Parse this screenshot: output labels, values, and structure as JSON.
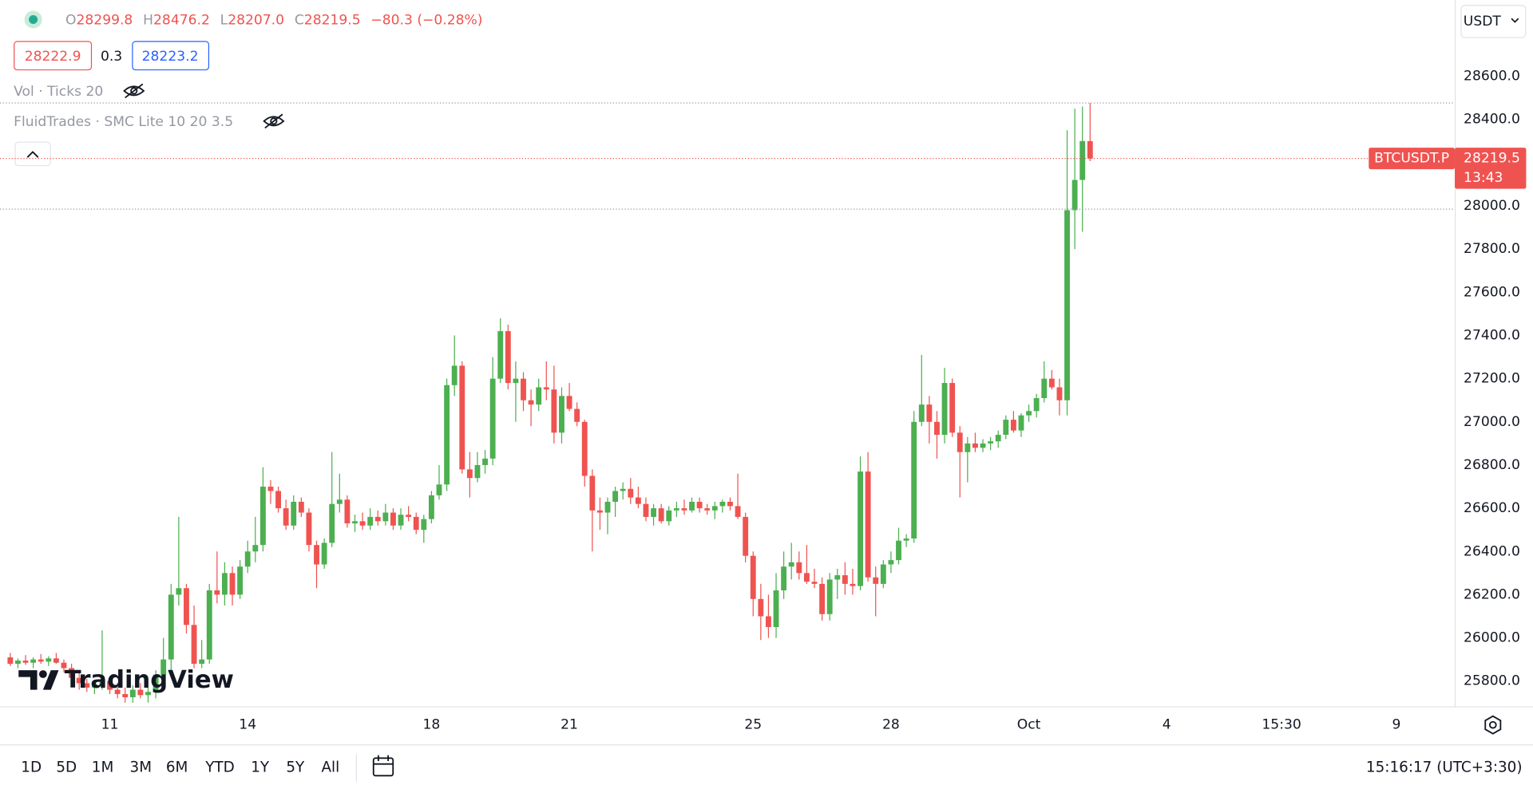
{
  "header": {
    "open_label": "O",
    "open": "28299.8",
    "high_label": "H",
    "high": "28476.2",
    "low_label": "L",
    "low": "28207.0",
    "close_label": "C",
    "close": "28219.5",
    "change": "−80.3 (−0.28%)",
    "bid": "28222.9",
    "spread": "0.3",
    "ask": "28223.2",
    "indicators": [
      "Vol · Ticks 20",
      "FluidTrades · SMC Lite 10 20 3.5"
    ],
    "currency": "USDT"
  },
  "toolbar": {
    "ranges": [
      "1D",
      "5D",
      "1M",
      "3M",
      "6M",
      "YTD",
      "1Y",
      "5Y",
      "All"
    ],
    "clock": "15:16:17 (UTC+3:30)"
  },
  "watermark": "TradingView",
  "chart_data": {
    "type": "candlestick",
    "up_color": "#4caf50",
    "down_color": "#ef5350",
    "grid": false,
    "ylim": [
      25683,
      28953
    ],
    "yticks": [
      {
        "value": 25800,
        "label": "25800.0"
      },
      {
        "value": 26000,
        "label": "26000.0"
      },
      {
        "value": 26200,
        "label": "26200.0"
      },
      {
        "value": 26400,
        "label": "26400.0"
      },
      {
        "value": 26600,
        "label": "26600.0"
      },
      {
        "value": 26800,
        "label": "26800.0"
      },
      {
        "value": 27000,
        "label": "27000.0"
      },
      {
        "value": 27200,
        "label": "27200.0"
      },
      {
        "value": 27400,
        "label": "27400.0"
      },
      {
        "value": 27600,
        "label": "27600.0"
      },
      {
        "value": 27800,
        "label": "27800.0"
      },
      {
        "value": 28000,
        "label": "28000.0"
      },
      {
        "value": 28200,
        "label": "28200.0"
      },
      {
        "value": 28400,
        "label": "28400.0"
      },
      {
        "value": 28600,
        "label": "28600.0"
      }
    ],
    "levels": [
      28476.2,
      27985
    ],
    "price_tag": {
      "symbol": "BTCUSDT.P",
      "price": 28219.5,
      "countdown": "13:43"
    },
    "categories": [
      null,
      null,
      null,
      null,
      null,
      null,
      null,
      null,
      null,
      null,
      null,
      null,
      null,
      "11",
      null,
      null,
      null,
      null,
      null,
      null,
      null,
      null,
      null,
      null,
      null,
      null,
      null,
      null,
      null,
      null,
      null,
      "14",
      null,
      null,
      null,
      null,
      null,
      null,
      null,
      null,
      null,
      null,
      null,
      null,
      null,
      null,
      null,
      null,
      null,
      null,
      null,
      null,
      null,
      null,
      null,
      "18",
      null,
      null,
      null,
      null,
      null,
      null,
      null,
      null,
      null,
      null,
      null,
      null,
      null,
      null,
      null,
      null,
      null,
      "21",
      null,
      null,
      null,
      null,
      null,
      null,
      null,
      null,
      null,
      null,
      null,
      null,
      null,
      null,
      null,
      null,
      null,
      null,
      null,
      null,
      null,
      null,
      null,
      "25",
      null,
      null,
      null,
      null,
      null,
      null,
      null,
      null,
      null,
      null,
      null,
      null,
      null,
      null,
      null,
      null,
      null,
      "28",
      null,
      null,
      null,
      null,
      null,
      null,
      null,
      null,
      null,
      null,
      null,
      null,
      null,
      null,
      null,
      null,
      null,
      "Oct",
      null,
      null,
      null,
      null,
      null,
      null,
      null,
      null,
      null,
      null,
      null,
      null,
      null,
      null,
      null,
      null,
      null,
      "4",
      null,
      null,
      null,
      null,
      null,
      null,
      null,
      null,
      null,
      null,
      null,
      null,
      null,
      null,
      "15:30",
      null,
      null,
      null,
      null,
      null,
      null,
      null,
      null,
      null,
      null,
      null,
      null,
      null,
      null,
      "9"
    ],
    "open": [
      25910,
      25880,
      25895,
      25885,
      25900,
      25890,
      25905,
      25885,
      25860,
      25815,
      25790,
      25770,
      25785,
      25800,
      25760,
      25740,
      25725,
      25760,
      25735,
      25750,
      25830,
      25900,
      26200,
      26230,
      26060,
      25880,
      25900,
      26220,
      26200,
      26300,
      26200,
      26330,
      26400,
      26430,
      26700,
      26680,
      26600,
      26520,
      26630,
      26580,
      26430,
      26340,
      26440,
      26620,
      26640,
      26530,
      26540,
      26520,
      26560,
      26540,
      26580,
      26520,
      26570,
      26560,
      26500,
      26550,
      26660,
      26710,
      27170,
      27260,
      26780,
      26740,
      26800,
      26830,
      27200,
      27420,
      27180,
      27200,
      27100,
      27080,
      27160,
      27150,
      26950,
      27120,
      27060,
      27000,
      26750,
      26590,
      26580,
      26630,
      26680,
      26690,
      26650,
      26620,
      26560,
      26600,
      26540,
      26590,
      26600,
      26590,
      26630,
      26600,
      26590,
      26610,
      26630,
      26610,
      26560,
      26380,
      26180,
      26100,
      26050,
      26220,
      26330,
      26350,
      26300,
      26260,
      26250,
      26110,
      26270,
      26290,
      26250,
      26240,
      26770,
      26280,
      26250,
      26340,
      26360,
      26450,
      26460,
      27000,
      27080,
      27000,
      26940,
      27180,
      26950,
      26860,
      26900,
      26880,
      26900,
      26910,
      26940,
      27010,
      26960,
      27030,
      27050,
      27110,
      27200,
      27160,
      27100,
      27980,
      28120,
      28299.8,
      null,
      null,
      null,
      null,
      null,
      null,
      null,
      null,
      null,
      null,
      null,
      null,
      null,
      null,
      null,
      null,
      null,
      null,
      null,
      null,
      null,
      null,
      null,
      null,
      null,
      null,
      null,
      null,
      null,
      null,
      null,
      null,
      null,
      null,
      null,
      null,
      null,
      null,
      null,
      null
    ],
    "high": [
      25930,
      25905,
      25920,
      25910,
      25925,
      25915,
      25930,
      25900,
      25880,
      25840,
      25810,
      25800,
      26035,
      25820,
      25790,
      25770,
      25780,
      25790,
      25770,
      25850,
      26000,
      26250,
      26560,
      26250,
      26150,
      25990,
      26250,
      26400,
      26350,
      26330,
      26360,
      26450,
      26560,
      26790,
      26730,
      26700,
      26640,
      26660,
      26650,
      26600,
      26450,
      26460,
      26860,
      26760,
      26660,
      26570,
      26580,
      26600,
      26590,
      26620,
      26600,
      26600,
      26610,
      26580,
      26570,
      26680,
      26800,
      27200,
      27400,
      27280,
      26860,
      26860,
      26870,
      27300,
      27480,
      27450,
      27280,
      27230,
      27150,
      27200,
      27280,
      27260,
      27160,
      27180,
      27090,
      27010,
      26780,
      26650,
      26650,
      26700,
      26720,
      26740,
      26700,
      26650,
      26620,
      26620,
      26610,
      26630,
      26640,
      26650,
      26650,
      26620,
      26630,
      26640,
      26650,
      26760,
      26580,
      26400,
      26250,
      26200,
      26300,
      26400,
      26440,
      26400,
      26430,
      26320,
      26280,
      26300,
      26320,
      26350,
      26320,
      26840,
      26860,
      26330,
      26360,
      26400,
      26510,
      26480,
      27050,
      27310,
      27120,
      27050,
      27250,
      27200,
      26980,
      26930,
      26950,
      26920,
      26930,
      26960,
      27030,
      27050,
      27040,
      27080,
      27130,
      27280,
      27240,
      27200,
      28350,
      28450,
      28460,
      28476.2,
      null,
      null,
      null,
      null,
      null,
      null,
      null,
      null,
      null,
      null,
      null,
      null,
      null,
      null,
      null,
      null,
      null,
      null,
      null,
      null,
      null,
      null,
      null,
      null,
      null,
      null,
      null,
      null,
      null,
      null,
      null,
      null,
      null,
      null,
      null,
      null,
      null,
      null,
      null,
      null
    ],
    "low": [
      25870,
      25860,
      25875,
      25860,
      25880,
      25870,
      25880,
      25840,
      25800,
      25760,
      25750,
      25740,
      25760,
      25740,
      25720,
      25700,
      25700,
      25720,
      25700,
      25720,
      25810,
      25850,
      26150,
      26020,
      25860,
      25860,
      25880,
      26160,
      26150,
      26150,
      26180,
      26300,
      26350,
      26400,
      26620,
      26580,
      26500,
      26500,
      26560,
      26400,
      26230,
      26320,
      26420,
      26580,
      26510,
      26490,
      26500,
      26500,
      26520,
      26520,
      26500,
      26500,
      26540,
      26480,
      26440,
      26530,
      26640,
      26680,
      27120,
      26760,
      26650,
      26720,
      26760,
      26800,
      27180,
      27150,
      27000,
      27050,
      26980,
      27050,
      27100,
      26900,
      26900,
      27050,
      26980,
      26700,
      26400,
      26500,
      26480,
      26560,
      26640,
      26620,
      26600,
      26540,
      26520,
      26530,
      26520,
      26560,
      26570,
      26580,
      26580,
      26570,
      26550,
      26580,
      26590,
      26550,
      26350,
      26100,
      25990,
      26000,
      26000,
      26180,
      26270,
      26270,
      26250,
      26230,
      26080,
      26080,
      26180,
      26200,
      26200,
      26220,
      26260,
      26100,
      26230,
      26300,
      26340,
      26420,
      26440,
      26980,
      26900,
      26830,
      26900,
      26930,
      26650,
      26720,
      26860,
      26860,
      26870,
      26880,
      26920,
      26950,
      26930,
      27000,
      27020,
      27090,
      27150,
      27030,
      27030,
      27800,
      27880,
      28207,
      null,
      null,
      null,
      null,
      null,
      null,
      null,
      null,
      null,
      null,
      null,
      null,
      null,
      null,
      null,
      null,
      null,
      null,
      null,
      null,
      null,
      null,
      null,
      null,
      null,
      null,
      null,
      null,
      null,
      null,
      null,
      null,
      null,
      null,
      null,
      null,
      null,
      null,
      null,
      null
    ],
    "close": [
      25880,
      25895,
      25885,
      25900,
      25890,
      25905,
      25885,
      25860,
      25815,
      25790,
      25770,
      25785,
      25800,
      25760,
      25740,
      25725,
      25760,
      25735,
      25750,
      25830,
      25900,
      26200,
      26230,
      26060,
      25880,
      25900,
      26220,
      26200,
      26300,
      26200,
      26330,
      26400,
      26430,
      26700,
      26680,
      26600,
      26520,
      26630,
      26580,
      26430,
      26340,
      26440,
      26620,
      26640,
      26530,
      26540,
      26520,
      26560,
      26540,
      26580,
      26520,
      26570,
      26560,
      26500,
      26550,
      26660,
      26710,
      27170,
      27260,
      26780,
      26740,
      26800,
      26830,
      27200,
      27420,
      27180,
      27200,
      27100,
      27080,
      27160,
      27150,
      26950,
      27120,
      27060,
      27000,
      26750,
      26590,
      26580,
      26630,
      26680,
      26690,
      26650,
      26620,
      26560,
      26600,
      26540,
      26590,
      26600,
      26590,
      26630,
      26600,
      26590,
      26610,
      26630,
      26610,
      26560,
      26380,
      26180,
      26100,
      26050,
      26220,
      26330,
      26350,
      26300,
      26260,
      26250,
      26110,
      26270,
      26290,
      26250,
      26240,
      26770,
      26280,
      26250,
      26340,
      26360,
      26450,
      26460,
      27000,
      27080,
      27000,
      26940,
      27180,
      26950,
      26860,
      26900,
      26880,
      26900,
      26910,
      26940,
      27010,
      26960,
      27030,
      27050,
      27110,
      27200,
      27160,
      27100,
      27980,
      28120,
      28300,
      28219.5,
      null,
      null,
      null,
      null,
      null,
      null,
      null,
      null,
      null,
      null,
      null,
      null,
      null,
      null,
      null,
      null,
      null,
      null,
      null,
      null,
      null,
      null,
      null,
      null,
      null,
      null,
      null,
      null,
      null,
      null,
      null,
      null,
      null,
      null,
      null,
      null,
      null,
      null,
      null,
      null
    ]
  }
}
